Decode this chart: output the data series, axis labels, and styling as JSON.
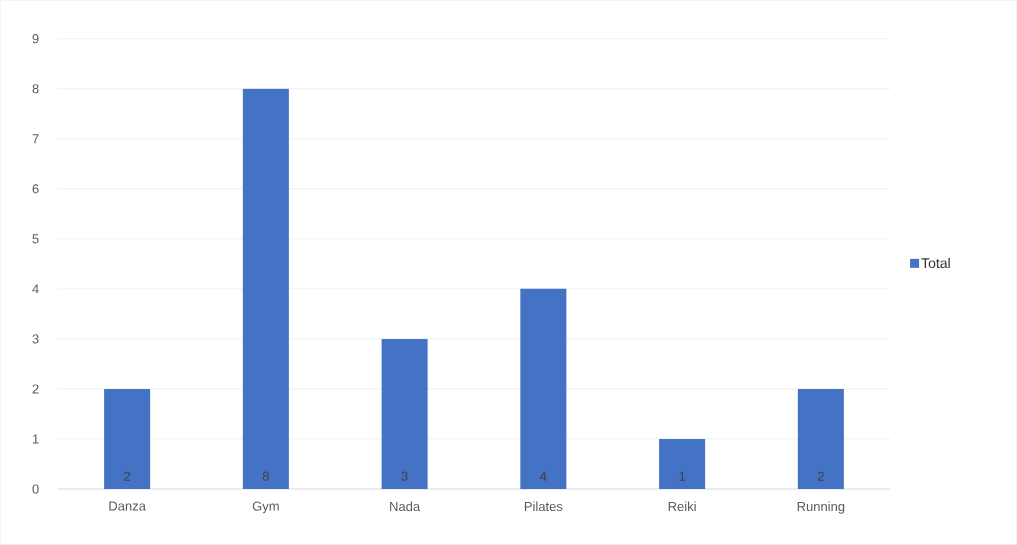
{
  "chart_data": {
    "type": "bar",
    "categories": [
      "Danza",
      "Gym",
      "Nada",
      "Pilates",
      "Reiki",
      "Running"
    ],
    "series": [
      {
        "name": "Total",
        "color": "#4472c4",
        "values": [
          2,
          8,
          3,
          4,
          1,
          2
        ]
      }
    ],
    "ylim": [
      0,
      9
    ],
    "yticks": [
      0,
      1,
      2,
      3,
      4,
      5,
      6,
      7,
      8,
      9
    ],
    "grid": "y",
    "legend": "right",
    "data_labels": true
  }
}
